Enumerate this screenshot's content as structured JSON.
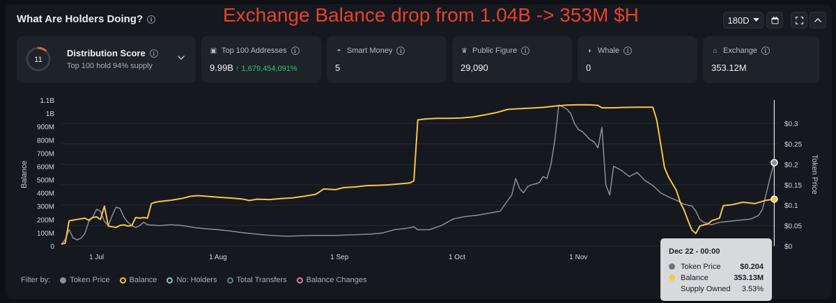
{
  "header": {
    "title": "What Are Holders Doing?",
    "annotation": "Exchange Balance drop from 1.04B -> 353M $H",
    "range": "180D"
  },
  "distribution": {
    "score": "11",
    "title": "Distribution Score",
    "subtitle": "Top 100 hold 94% supply",
    "gauge_fraction": 0.11
  },
  "cards": [
    {
      "label": "Top 100 Addresses",
      "value": "9.99B",
      "change": "↑ 1,679,454,091%",
      "icon": "wallet-icon"
    },
    {
      "label": "Smart Money",
      "value": "5",
      "change": "",
      "icon": "brain-icon"
    },
    {
      "label": "Public Figure",
      "value": "29,090",
      "change": "",
      "icon": "person-icon"
    },
    {
      "label": "Whale",
      "value": "0",
      "change": "",
      "icon": "whale-icon"
    },
    {
      "label": "Exchange",
      "value": "353.12M",
      "change": "",
      "icon": "bank-icon"
    }
  ],
  "legend": {
    "prefix": "Filter by:",
    "items": [
      {
        "label": "Token Price",
        "color": "#8a9099",
        "active": true
      },
      {
        "label": "Balance",
        "color": "#f5c744",
        "active": true
      },
      {
        "label": "No: Holders",
        "color": "#7fc6c1",
        "active": false
      },
      {
        "label": "Total Transfers",
        "color": "#4b8f8a",
        "active": false
      },
      {
        "label": "Balance Changes",
        "color": "#d98aa2",
        "active": false
      }
    ]
  },
  "tooltip": {
    "date": "Dec 22 - 00:00",
    "rows": [
      {
        "label": "Token Price",
        "value": "$0.204",
        "color": "#6b7280"
      },
      {
        "label": "Balance",
        "value": "353.13M",
        "color": "#f5c744"
      }
    ],
    "supply_label": "Supply Owned",
    "supply_value": "3.53%"
  },
  "chart_data": {
    "type": "line",
    "x_ticks": [
      {
        "label": "1 Jul",
        "day": 9
      },
      {
        "label": "1 Aug",
        "day": 40
      },
      {
        "label": "1 Sep",
        "day": 71
      },
      {
        "label": "1 Oct",
        "day": 101
      },
      {
        "label": "1 Nov",
        "day": 132
      }
    ],
    "x_range_days": [
      0,
      183
    ],
    "ylabel": "Balance",
    "y2label": "Token Price",
    "ylim": [
      0,
      1100000000
    ],
    "y_ticks": [
      {
        "label": "0",
        "v": 0
      },
      {
        "label": "100M",
        "v": 100000000
      },
      {
        "label": "200M",
        "v": 200000000
      },
      {
        "label": "300M",
        "v": 300000000
      },
      {
        "label": "400M",
        "v": 400000000
      },
      {
        "label": "500M",
        "v": 500000000
      },
      {
        "label": "600M",
        "v": 600000000
      },
      {
        "label": "700M",
        "v": 700000000
      },
      {
        "label": "800M",
        "v": 800000000
      },
      {
        "label": "900M",
        "v": 900000000
      },
      {
        "label": "1B",
        "v": 1000000000
      },
      {
        "label": "1.1B",
        "v": 1100000000
      }
    ],
    "y2lim": [
      0,
      0.357
    ],
    "y2_ticks": [
      {
        "label": "$0",
        "v": 0
      },
      {
        "label": "$0.05",
        "v": 0.05
      },
      {
        "label": "$0.1",
        "v": 0.1
      },
      {
        "label": "$0.15",
        "v": 0.15
      },
      {
        "label": "$0.2",
        "v": 0.2
      },
      {
        "label": "$0.25",
        "v": 0.25
      },
      {
        "label": "$0.3",
        "v": 0.3
      }
    ],
    "grid": true,
    "series": [
      {
        "name": "Balance",
        "axis": "left",
        "color": "#f5c744",
        "points": [
          [
            0,
            15000000
          ],
          [
            1,
            20000000
          ],
          [
            2,
            190000000
          ],
          [
            3,
            195000000
          ],
          [
            4,
            200000000
          ],
          [
            5,
            205000000
          ],
          [
            6,
            210000000
          ],
          [
            7,
            195000000
          ],
          [
            8,
            215000000
          ],
          [
            9,
            220000000
          ],
          [
            10,
            200000000
          ],
          [
            11,
            300000000
          ],
          [
            12,
            150000000
          ],
          [
            13,
            145000000
          ],
          [
            14,
            140000000
          ],
          [
            15,
            155000000
          ],
          [
            16,
            160000000
          ],
          [
            17,
            150000000
          ],
          [
            18,
            155000000
          ],
          [
            19,
            215000000
          ],
          [
            20,
            210000000
          ],
          [
            21,
            215000000
          ],
          [
            22,
            210000000
          ],
          [
            23,
            320000000
          ],
          [
            24,
            330000000
          ],
          [
            25,
            335000000
          ],
          [
            28,
            345000000
          ],
          [
            31,
            360000000
          ],
          [
            33,
            375000000
          ],
          [
            35,
            380000000
          ],
          [
            37,
            375000000
          ],
          [
            40,
            368000000
          ],
          [
            43,
            362000000
          ],
          [
            46,
            355000000
          ],
          [
            48,
            343000000
          ],
          [
            50,
            353000000
          ],
          [
            53,
            350000000
          ],
          [
            56,
            358000000
          ],
          [
            59,
            363000000
          ],
          [
            62,
            375000000
          ],
          [
            65,
            390000000
          ],
          [
            67,
            430000000
          ],
          [
            70,
            425000000
          ],
          [
            72,
            440000000
          ],
          [
            75,
            445000000
          ],
          [
            78,
            455000000
          ],
          [
            81,
            458000000
          ],
          [
            84,
            462000000
          ],
          [
            87,
            470000000
          ],
          [
            89,
            475000000
          ],
          [
            90,
            492000000
          ],
          [
            91,
            950000000
          ],
          [
            93,
            958000000
          ],
          [
            96,
            962000000
          ],
          [
            99,
            963000000
          ],
          [
            102,
            965000000
          ],
          [
            105,
            972000000
          ],
          [
            108,
            988000000
          ],
          [
            111,
            1005000000
          ],
          [
            114,
            1030000000
          ],
          [
            117,
            1035000000
          ],
          [
            120,
            1040000000
          ],
          [
            123,
            1045000000
          ],
          [
            126,
            1055000000
          ],
          [
            129,
            1062000000
          ],
          [
            132,
            1065000000
          ],
          [
            135,
            1064000000
          ],
          [
            137,
            1060000000
          ],
          [
            138,
            1042000000
          ],
          [
            141,
            1042000000
          ],
          [
            144,
            1045000000
          ],
          [
            147,
            1046000000
          ],
          [
            151,
            1046000000
          ],
          [
            152,
            950000000
          ],
          [
            153,
            770000000
          ],
          [
            154,
            590000000
          ],
          [
            155,
            520000000
          ],
          [
            156,
            470000000
          ],
          [
            157,
            420000000
          ],
          [
            158,
            330000000
          ],
          [
            159,
            270000000
          ],
          [
            160,
            190000000
          ],
          [
            161,
            120000000
          ],
          [
            162,
            95000000
          ],
          [
            163,
            150000000
          ],
          [
            164,
            160000000
          ],
          [
            165,
            165000000
          ],
          [
            166,
            190000000
          ],
          [
            167,
            200000000
          ],
          [
            168,
            210000000
          ],
          [
            169,
            305000000
          ],
          [
            171,
            310000000
          ],
          [
            174,
            330000000
          ],
          [
            177,
            320000000
          ],
          [
            180,
            345000000
          ],
          [
            182,
            353130000
          ]
        ]
      },
      {
        "name": "Token Price",
        "axis": "right",
        "color": "#8a9099",
        "points": [
          [
            0,
            0.004
          ],
          [
            1,
            0.016
          ],
          [
            2,
            0.04
          ],
          [
            3,
            0.02
          ],
          [
            4,
            0.015
          ],
          [
            5,
            0.019
          ],
          [
            6,
            0.03
          ],
          [
            7,
            0.06
          ],
          [
            8,
            0.07
          ],
          [
            9,
            0.09
          ],
          [
            10,
            0.085
          ],
          [
            11,
            0.06
          ],
          [
            12,
            0.05
          ],
          [
            13,
            0.075
          ],
          [
            14,
            0.095
          ],
          [
            15,
            0.092
          ],
          [
            16,
            0.07
          ],
          [
            17,
            0.058
          ],
          [
            18,
            0.05
          ],
          [
            19,
            0.045
          ],
          [
            20,
            0.05
          ],
          [
            21,
            0.058
          ],
          [
            22,
            0.052
          ],
          [
            25,
            0.05
          ],
          [
            28,
            0.052
          ],
          [
            31,
            0.05
          ],
          [
            34,
            0.045
          ],
          [
            37,
            0.042
          ],
          [
            40,
            0.04
          ],
          [
            43,
            0.037
          ],
          [
            46,
            0.033
          ],
          [
            49,
            0.03
          ],
          [
            52,
            0.027
          ],
          [
            55,
            0.025
          ],
          [
            58,
            0.024
          ],
          [
            61,
            0.025
          ],
          [
            64,
            0.026
          ],
          [
            67,
            0.026
          ],
          [
            70,
            0.026
          ],
          [
            73,
            0.027
          ],
          [
            76,
            0.028
          ],
          [
            79,
            0.029
          ],
          [
            82,
            0.032
          ],
          [
            85,
            0.04
          ],
          [
            88,
            0.043
          ],
          [
            90,
            0.047
          ],
          [
            91,
            0.04
          ],
          [
            94,
            0.04
          ],
          [
            97,
            0.05
          ],
          [
            100,
            0.066
          ],
          [
            103,
            0.072
          ],
          [
            106,
            0.075
          ],
          [
            109,
            0.08
          ],
          [
            112,
            0.085
          ],
          [
            115,
            0.125
          ],
          [
            116,
            0.165
          ],
          [
            117,
            0.14
          ],
          [
            118,
            0.13
          ],
          [
            119,
            0.145
          ],
          [
            120,
            0.15
          ],
          [
            121,
            0.152
          ],
          [
            122,
            0.155
          ],
          [
            123,
            0.17
          ],
          [
            124,
            0.165
          ],
          [
            125,
            0.2
          ],
          [
            126,
            0.26
          ],
          [
            127,
            0.345
          ],
          [
            128,
            0.34
          ],
          [
            129,
            0.335
          ],
          [
            130,
            0.325
          ],
          [
            131,
            0.3
          ],
          [
            132,
            0.285
          ],
          [
            133,
            0.28
          ],
          [
            134,
            0.27
          ],
          [
            135,
            0.26
          ],
          [
            136,
            0.255
          ],
          [
            137,
            0.24
          ],
          [
            138,
            0.29
          ],
          [
            139,
            0.15
          ],
          [
            140,
            0.125
          ],
          [
            141,
            0.195
          ],
          [
            143,
            0.185
          ],
          [
            145,
            0.17
          ],
          [
            147,
            0.18
          ],
          [
            149,
            0.16
          ],
          [
            151,
            0.148
          ],
          [
            153,
            0.13
          ],
          [
            155,
            0.12
          ],
          [
            157,
            0.112
          ],
          [
            159,
            0.102
          ],
          [
            161,
            0.098
          ],
          [
            162,
            0.085
          ],
          [
            163,
            0.065
          ],
          [
            164,
            0.058
          ],
          [
            166,
            0.052
          ],
          [
            168,
            0.058
          ],
          [
            170,
            0.06
          ],
          [
            172,
            0.062
          ],
          [
            174,
            0.064
          ],
          [
            176,
            0.066
          ],
          [
            178,
            0.075
          ],
          [
            179,
            0.09
          ],
          [
            180,
            0.13
          ],
          [
            181,
            0.17
          ],
          [
            182,
            0.204
          ]
        ]
      }
    ]
  }
}
